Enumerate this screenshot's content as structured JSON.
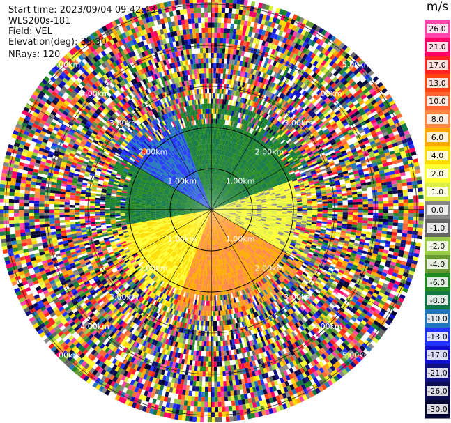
{
  "header": {
    "start_time": "Start time: 2023/09/04 09:42:43",
    "instrument": "WLS200s-181",
    "field": "Field: VEL",
    "elevation": "Elevation(deg): 35.30",
    "nrays": "NRays: 120"
  },
  "colorbar": {
    "unit": "m/s",
    "ticks": [
      "26.0",
      "21.0",
      "17.0",
      "13.0",
      "10.0",
      "8.0",
      "6.0",
      "4.0",
      "2.0",
      "1.0",
      "0.0",
      "-1.0",
      "-2.0",
      "-4.0",
      "-6.0",
      "-8.0",
      "-10.0",
      "-13.0",
      "-17.0",
      "-21.0",
      "-26.0",
      "-30.0"
    ],
    "colors": [
      "#ff44aa",
      "#ff0066",
      "#ff2222",
      "#ff4411",
      "#ff6633",
      "#ff8844",
      "#ffaa00",
      "#ffdd00",
      "#ffff33",
      "#ddee44",
      "#888888",
      "#666666",
      "#99cc44",
      "#669933",
      "#228822",
      "#117744",
      "#2277bb",
      "#2233ff",
      "#1111cc",
      "#101080",
      "#0c0c55",
      "#070733"
    ]
  },
  "chart_data": {
    "type": "ppi",
    "field": "VEL",
    "units": "m/s",
    "range_rings_km": [
      1,
      2,
      3,
      4,
      5
    ],
    "ring_labels": [
      "1.00km",
      "2.00km",
      "3.00km",
      "4.00km",
      "5.00km"
    ],
    "n_rays": 120,
    "elevation_deg": 35.3,
    "clean_range_km": 2.2,
    "regions": [
      {
        "azimuth_deg": [
          0,
          90
        ],
        "value_ms": -6.0
      },
      {
        "azimuth_deg": [
          270,
          360
        ],
        "value_ms": -6.0
      },
      {
        "azimuth_deg": [
          300,
          340
        ],
        "value_ms": -10.0
      },
      {
        "azimuth_deg": [
          70,
          120
        ],
        "value_ms": 2.0
      },
      {
        "azimuth_deg": [
          120,
          200
        ],
        "value_ms": 8.0
      },
      {
        "azimuth_deg": [
          200,
          260
        ],
        "value_ms": 4.0
      }
    ]
  }
}
